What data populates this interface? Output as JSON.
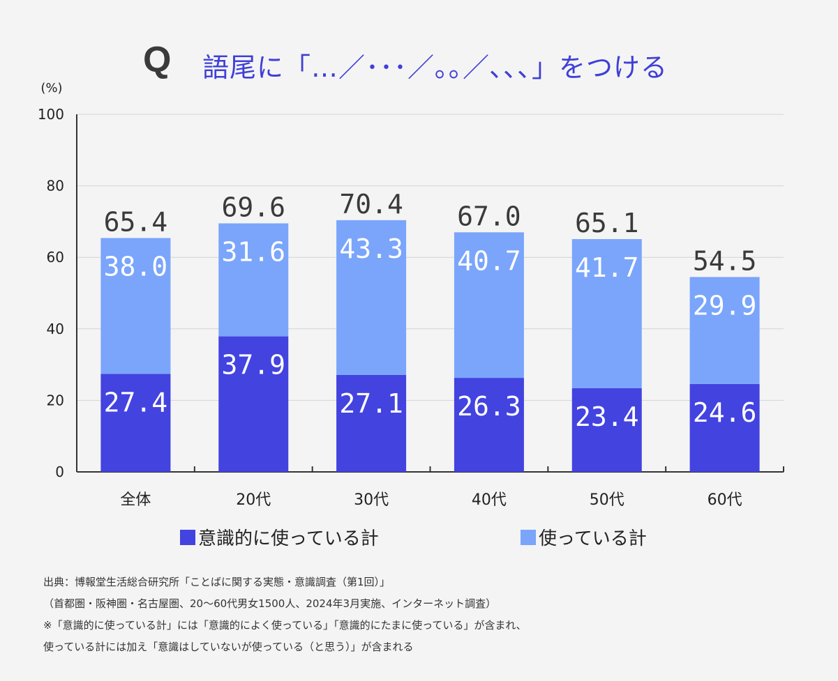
{
  "header": {
    "q_mark": "Q",
    "title": "語尾に「…／･･･／｡｡／､､､」をつける"
  },
  "chart_data": {
    "type": "bar",
    "stacked": true,
    "unit_label": "(%)",
    "ylim": [
      0,
      100
    ],
    "yticks": [
      "0",
      "20",
      "40",
      "60",
      "80",
      "100"
    ],
    "categories": [
      "全体",
      "20代",
      "30代",
      "40代",
      "50代",
      "60代"
    ],
    "series": [
      {
        "name": "意識的に使っている計",
        "values": [
          27.4,
          37.9,
          27.1,
          26.3,
          23.4,
          24.6
        ],
        "labels": [
          "27.4",
          "37.9",
          "27.1",
          "26.3",
          "23.4",
          "24.6"
        ],
        "color": "#4343e0"
      },
      {
        "name": "使っている計",
        "values": [
          38.0,
          31.6,
          43.3,
          40.7,
          41.7,
          29.9
        ],
        "labels": [
          "38.0",
          "31.6",
          "43.3",
          "40.7",
          "41.7",
          "29.9"
        ],
        "color": "#7aa5fb"
      }
    ],
    "totals": [
      65.4,
      69.6,
      70.4,
      67.0,
      65.1,
      54.5
    ],
    "total_labels": [
      "65.4",
      "69.6",
      "70.4",
      "67.0",
      "65.1",
      "54.5"
    ],
    "grid": true,
    "legend_position": "bottom"
  },
  "legend": {
    "conscious": "意識的に使っている計",
    "using": "使っている計"
  },
  "footnotes": [
    "出典：博報堂生活総合研究所「ことばに関する実態・意識調査（第1回）」",
    "（首都圏・阪神圏・名古屋圏、20～60代男女1500人、2024年3月実施、インターネット調査）",
    "※「意識的に使っている計」には「意識的によく使っている」「意識的にたまに使っている」が含まれ、",
    "使っている計には加え「意識はしていないが使っている（と思う）」が含まれる"
  ]
}
